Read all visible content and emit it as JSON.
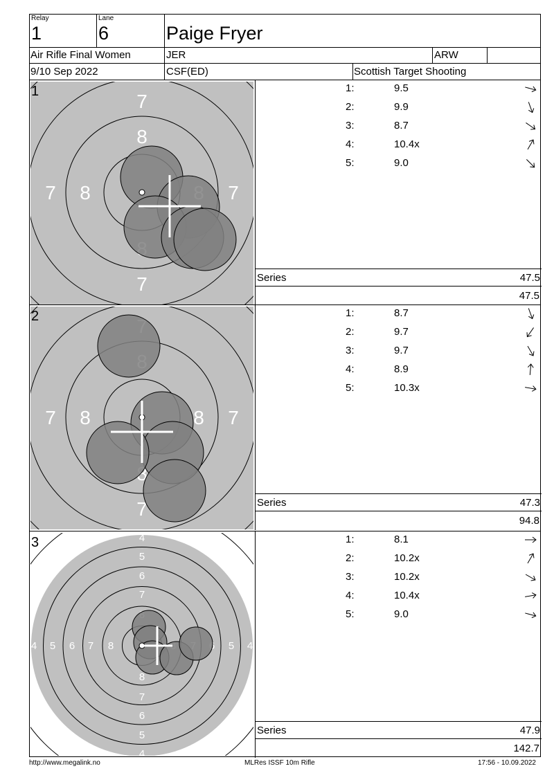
{
  "header": {
    "relay_label": "Relay",
    "relay": "1",
    "lane_label": "Lane",
    "lane": "6",
    "name": "Paige Fryer",
    "event": "Air Rifle Final Women",
    "nation": "JER",
    "class": "ARW",
    "date": "9/10 Sep 2022",
    "club": "CSF(ED)",
    "organizer": "Scottish Target Shooting"
  },
  "series": [
    {
      "number": "1",
      "label": "Series",
      "series_total": "47.5",
      "running_total": "47.5",
      "shots": [
        {
          "n": "1:",
          "value": "9.5",
          "direction_deg": 15
        },
        {
          "n": "2:",
          "value": "9.9",
          "direction_deg": 70
        },
        {
          "n": "3:",
          "value": "8.7",
          "direction_deg": 35
        },
        {
          "n": "4:",
          "value": "10.4x",
          "direction_deg": -60
        },
        {
          "n": "5:",
          "value": "9.0",
          "direction_deg": 45
        }
      ]
    },
    {
      "number": "2",
      "label": "Series",
      "series_total": "47.3",
      "running_total": "94.8",
      "shots": [
        {
          "n": "1:",
          "value": "8.7",
          "direction_deg": 70
        },
        {
          "n": "2:",
          "value": "9.7",
          "direction_deg": 125
        },
        {
          "n": "3:",
          "value": "9.7",
          "direction_deg": 60
        },
        {
          "n": "4:",
          "value": "8.9",
          "direction_deg": -85
        },
        {
          "n": "5:",
          "value": "10.3x",
          "direction_deg": 10
        }
      ]
    },
    {
      "number": "3",
      "label": "Series",
      "series_total": "47.9",
      "running_total": "142.7",
      "shots": [
        {
          "n": "1:",
          "value": "8.1",
          "direction_deg": 0
        },
        {
          "n": "2:",
          "value": "10.2x",
          "direction_deg": -60
        },
        {
          "n": "3:",
          "value": "10.2x",
          "direction_deg": 30
        },
        {
          "n": "4:",
          "value": "10.4x",
          "direction_deg": -10
        },
        {
          "n": "5:",
          "value": "9.0",
          "direction_deg": 15
        }
      ]
    }
  ],
  "footer": {
    "url": "http://www.megalink.no",
    "software": "MLRes ISSF 10m Rifle",
    "timestamp": "17:56 - 10.09.2022"
  },
  "colors": {
    "target_gray": "#c0c0c0",
    "shot_fill": "#808080",
    "ring_line": "#000000",
    "mpi_cross": "#ffffff"
  }
}
